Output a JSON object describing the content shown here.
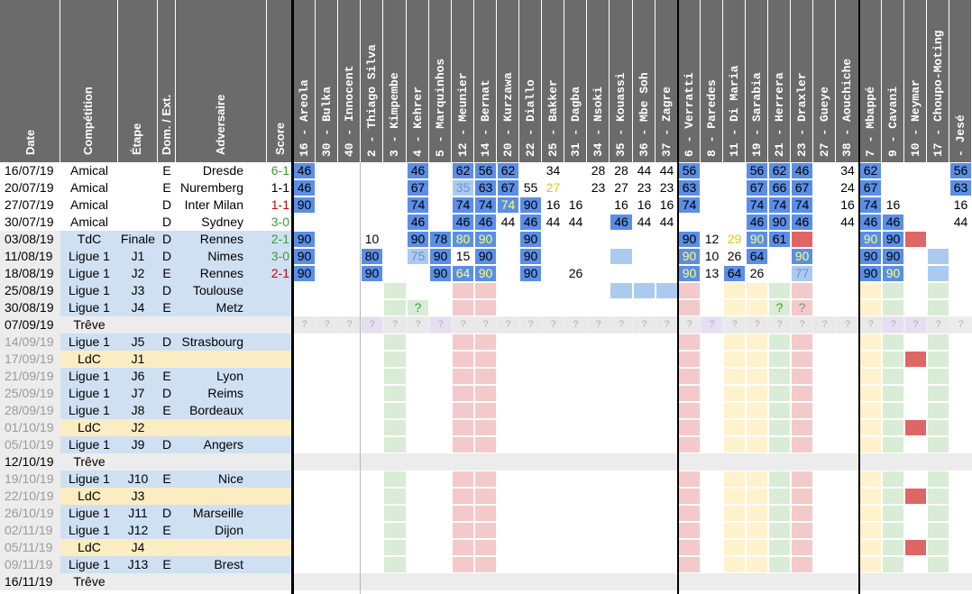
{
  "colors": {
    "header_bg": "#6b6b6b",
    "header_text": "#ffffff",
    "row_ligue1": "#cfe0f3",
    "row_ldc": "#fcecc2",
    "row_treve": "#ececec",
    "starter": "#5b8ee6",
    "sub": "#aacbef",
    "unused": "#d9ecd5",
    "injured": "#f4c9ca",
    "suspended": "#e06666",
    "doubtful": "#fff2cc",
    "unknown": "#e7def2",
    "win": "#3c9b3c",
    "draw": "#000000",
    "loss": "#cc0000"
  },
  "headers": {
    "date": "Date",
    "competition": "Compétition",
    "etape": "Étape",
    "dom_ext": "Dom. / Ext.",
    "adversaire": "Adversaire",
    "score": "Score"
  },
  "players": [
    "16 - Areola",
    "30 - Bulka",
    "40 - Innocent",
    "2 - Thiago Silva",
    "3 - Kimpembe",
    "4 - Kehrer",
    "5 - Marquinhos",
    "12 - Meunier",
    "14 - Bernat",
    "20 - Kurzawa",
    "22 - Diallo",
    "25 - Bakker",
    "31 - Dagba",
    "34 - Nsoki",
    "35 - Kouassi",
    "36 - Mbe Soh",
    "37 - Zagre",
    "6 - Verratti",
    "8 - Paredes",
    "11 - Di Maria",
    "19 - Sarabia",
    "21 - Herrera",
    "23 - Draxler",
    "27 - Gueye",
    "38 - Aouchiche",
    "7 - Mbappé",
    "9 - Cavani",
    "10 - Neymar",
    "17 - Choupo-Moting",
    "- Jesé"
  ],
  "rows": [
    {
      "date": "16/07/19",
      "competition": "Amical",
      "etape": "",
      "dom_ext": "E",
      "adversaire": "Dresde",
      "score": "6-1",
      "result": "win",
      "type": "amical",
      "cells": {
        "0": "S:46",
        "5": "S:46",
        "7": "S:62",
        "8": "S:56",
        "9": "S:62",
        "11": "t:34",
        "13": "t:28",
        "14": "t:28",
        "15": "t:44",
        "16": "t:44",
        "17": "S:56",
        "20": "S:56",
        "21": "S:62",
        "22": "S:46",
        "24": "t:34",
        "25": "S:62",
        "29": "S:56"
      }
    },
    {
      "date": "20/07/19",
      "competition": "Amical",
      "etape": "",
      "dom_ext": "E",
      "adversaire": "Nuremberg",
      "score": "1-1",
      "result": "draw",
      "type": "amical",
      "cells": {
        "0": "S:46",
        "5": "S:67",
        "7": "B:35",
        "8": "S:63",
        "9": "S:67",
        "10": "t:55",
        "11": "Y:27",
        "13": "t:23",
        "14": "t:27",
        "15": "t:23",
        "16": "t:23",
        "17": "S:63",
        "20": "S:67",
        "21": "S:66",
        "22": "S:67",
        "24": "t:24",
        "25": "S:67",
        "29": "S:63"
      }
    },
    {
      "date": "27/07/19",
      "competition": "Amical",
      "etape": "",
      "dom_ext": "D",
      "adversaire": "Inter Milan",
      "score": "1-1",
      "result": "loss",
      "type": "amical",
      "cells": {
        "0": "S:90",
        "5": "S:74",
        "7": "S:74",
        "8": "S:74",
        "9": "SY:74",
        "10": "S:90",
        "11": "t:16",
        "12": "t:16",
        "14": "t:16",
        "15": "t:16",
        "16": "t:16",
        "17": "S:74",
        "20": "S:74",
        "21": "S:74",
        "22": "S:74",
        "24": "t:16",
        "25": "S:74",
        "26": "t:16",
        "29": "t:16"
      }
    },
    {
      "date": "30/07/19",
      "competition": "Amical",
      "etape": "",
      "dom_ext": "D",
      "adversaire": "Sydney",
      "score": "3-0",
      "result": "win",
      "type": "amical",
      "cells": {
        "5": "S:46",
        "7": "S:46",
        "8": "S:46",
        "9": "t:44",
        "10": "S:46",
        "11": "t:44",
        "12": "t:44",
        "14": "S:46",
        "15": "t:44",
        "16": "t:44",
        "20": "S:46",
        "21": "S:90",
        "22": "S:46",
        "24": "t:44",
        "25": "S:46",
        "26": "S:46",
        "29": "t:44"
      }
    },
    {
      "date": "03/08/19",
      "competition": "TdC",
      "etape": "Finale",
      "dom_ext": "D",
      "adversaire": "Rennes",
      "score": "2-1",
      "result": "win",
      "type": "ligue1",
      "cells": {
        "0": "S:90",
        "3": "t:10",
        "5": "S:90",
        "6": "S:78",
        "7": "SY:80",
        "8": "SY:90",
        "10": "S:90",
        "17": "S:90",
        "18": "t:12",
        "19": "Y:29",
        "20": "SY:90",
        "21": "S:61",
        "22": "R:",
        "25": "SY:90",
        "26": "S:90",
        "27": "R:"
      }
    },
    {
      "date": "11/08/19",
      "competition": "Ligue 1",
      "etape": "J1",
      "dom_ext": "D",
      "adversaire": "Nimes",
      "score": "3-0",
      "result": "win",
      "type": "ligue1",
      "cells": {
        "0": "S:90",
        "3": "S:80",
        "5": "B:75",
        "6": "S:90",
        "7": "t:15",
        "8": "S:90",
        "10": "S:90",
        "14": "B:",
        "17": "SY:90",
        "18": "t:10",
        "19": "t:26",
        "20": "S:64",
        "22": "SY:90",
        "25": "S:90",
        "26": "S:90",
        "28": "B:"
      }
    },
    {
      "date": "18/08/19",
      "competition": "Ligue 1",
      "etape": "J2",
      "dom_ext": "E",
      "adversaire": "Rennes",
      "score": "2-1",
      "result": "loss",
      "type": "ligue1",
      "cells": {
        "0": "S:90",
        "3": "S:90",
        "6": "S:90",
        "7": "SY:64",
        "8": "SY:90",
        "10": "S:90",
        "12": "t:26",
        "17": "SY:90",
        "18": "t:13",
        "19": "S:64",
        "20": "t:26",
        "22": "B:77",
        "25": "S:90",
        "26": "SY:90",
        "28": "B:"
      }
    },
    {
      "date": "25/08/19",
      "competition": "Ligue 1",
      "etape": "J3",
      "dom_ext": "D",
      "adversaire": "Toulouse",
      "score": "",
      "result": "none",
      "type": "ligue1",
      "cells": {}
    },
    {
      "date": "30/08/19",
      "competition": "Ligue 1",
      "etape": "J4",
      "dom_ext": "E",
      "adversaire": "Metz",
      "score": "",
      "result": "none",
      "type": "ligue1",
      "cells": {
        "5": "G:?",
        "21": "G:?",
        "22": "P:?"
      }
    },
    {
      "date": "07/09/19",
      "competition": "Trêve",
      "etape": "",
      "dom_ext": "",
      "adversaire": "",
      "score": "",
      "result": "none",
      "type": "treve",
      "cells": {}
    },
    {
      "date": "14/09/19",
      "competition": "Ligue 1",
      "etape": "J5",
      "dom_ext": "D",
      "adversaire": "Strasbourg",
      "score": "",
      "result": "none",
      "type": "ligue1",
      "cells": {}
    },
    {
      "date": "17/09/19",
      "competition": "LdC",
      "etape": "J1",
      "dom_ext": "",
      "adversaire": "",
      "score": "",
      "result": "none",
      "type": "ldc",
      "cells": {}
    },
    {
      "date": "21/09/19",
      "competition": "Ligue 1",
      "etape": "J6",
      "dom_ext": "E",
      "adversaire": "Lyon",
      "score": "",
      "result": "none",
      "type": "ligue1",
      "cells": {}
    },
    {
      "date": "25/09/19",
      "competition": "Ligue 1",
      "etape": "J7",
      "dom_ext": "D",
      "adversaire": "Reims",
      "score": "",
      "result": "none",
      "type": "ligue1",
      "cells": {}
    },
    {
      "date": "28/09/19",
      "competition": "Ligue 1",
      "etape": "J8",
      "dom_ext": "E",
      "adversaire": "Bordeaux",
      "score": "",
      "result": "none",
      "type": "ligue1",
      "cells": {}
    },
    {
      "date": "01/10/19",
      "competition": "LdC",
      "etape": "J2",
      "dom_ext": "",
      "adversaire": "",
      "score": "",
      "result": "none",
      "type": "ldc",
      "cells": {}
    },
    {
      "date": "05/10/19",
      "competition": "Ligue 1",
      "etape": "J9",
      "dom_ext": "D",
      "adversaire": "Angers",
      "score": "",
      "result": "none",
      "type": "ligue1",
      "cells": {}
    },
    {
      "date": "12/10/19",
      "competition": "Trêve",
      "etape": "",
      "dom_ext": "",
      "adversaire": "",
      "score": "",
      "result": "none",
      "type": "treve",
      "cells": {}
    },
    {
      "date": "19/10/19",
      "competition": "Ligue 1",
      "etape": "J10",
      "dom_ext": "E",
      "adversaire": "Nice",
      "score": "",
      "result": "none",
      "type": "ligue1",
      "cells": {}
    },
    {
      "date": "22/10/19",
      "competition": "LdC",
      "etape": "J3",
      "dom_ext": "",
      "adversaire": "",
      "score": "",
      "result": "none",
      "type": "ldc",
      "cells": {}
    },
    {
      "date": "26/10/19",
      "competition": "Ligue 1",
      "etape": "J11",
      "dom_ext": "D",
      "adversaire": "Marseille",
      "score": "",
      "result": "none",
      "type": "ligue1",
      "cells": {}
    },
    {
      "date": "02/11/19",
      "competition": "Ligue 1",
      "etape": "J12",
      "dom_ext": "E",
      "adversaire": "Dijon",
      "score": "",
      "result": "none",
      "type": "ligue1",
      "cells": {}
    },
    {
      "date": "05/11/19",
      "competition": "LdC",
      "etape": "J4",
      "dom_ext": "",
      "adversaire": "",
      "score": "",
      "result": "none",
      "type": "ldc",
      "cells": {}
    },
    {
      "date": "09/11/19",
      "competition": "Ligue 1",
      "etape": "J13",
      "dom_ext": "E",
      "adversaire": "Brest",
      "score": "",
      "result": "none",
      "type": "ligue1",
      "cells": {}
    },
    {
      "date": "16/11/19",
      "competition": "Trêve",
      "etape": "",
      "dom_ext": "",
      "adversaire": "",
      "score": "",
      "result": "none",
      "type": "treve",
      "cells": {}
    }
  ]
}
